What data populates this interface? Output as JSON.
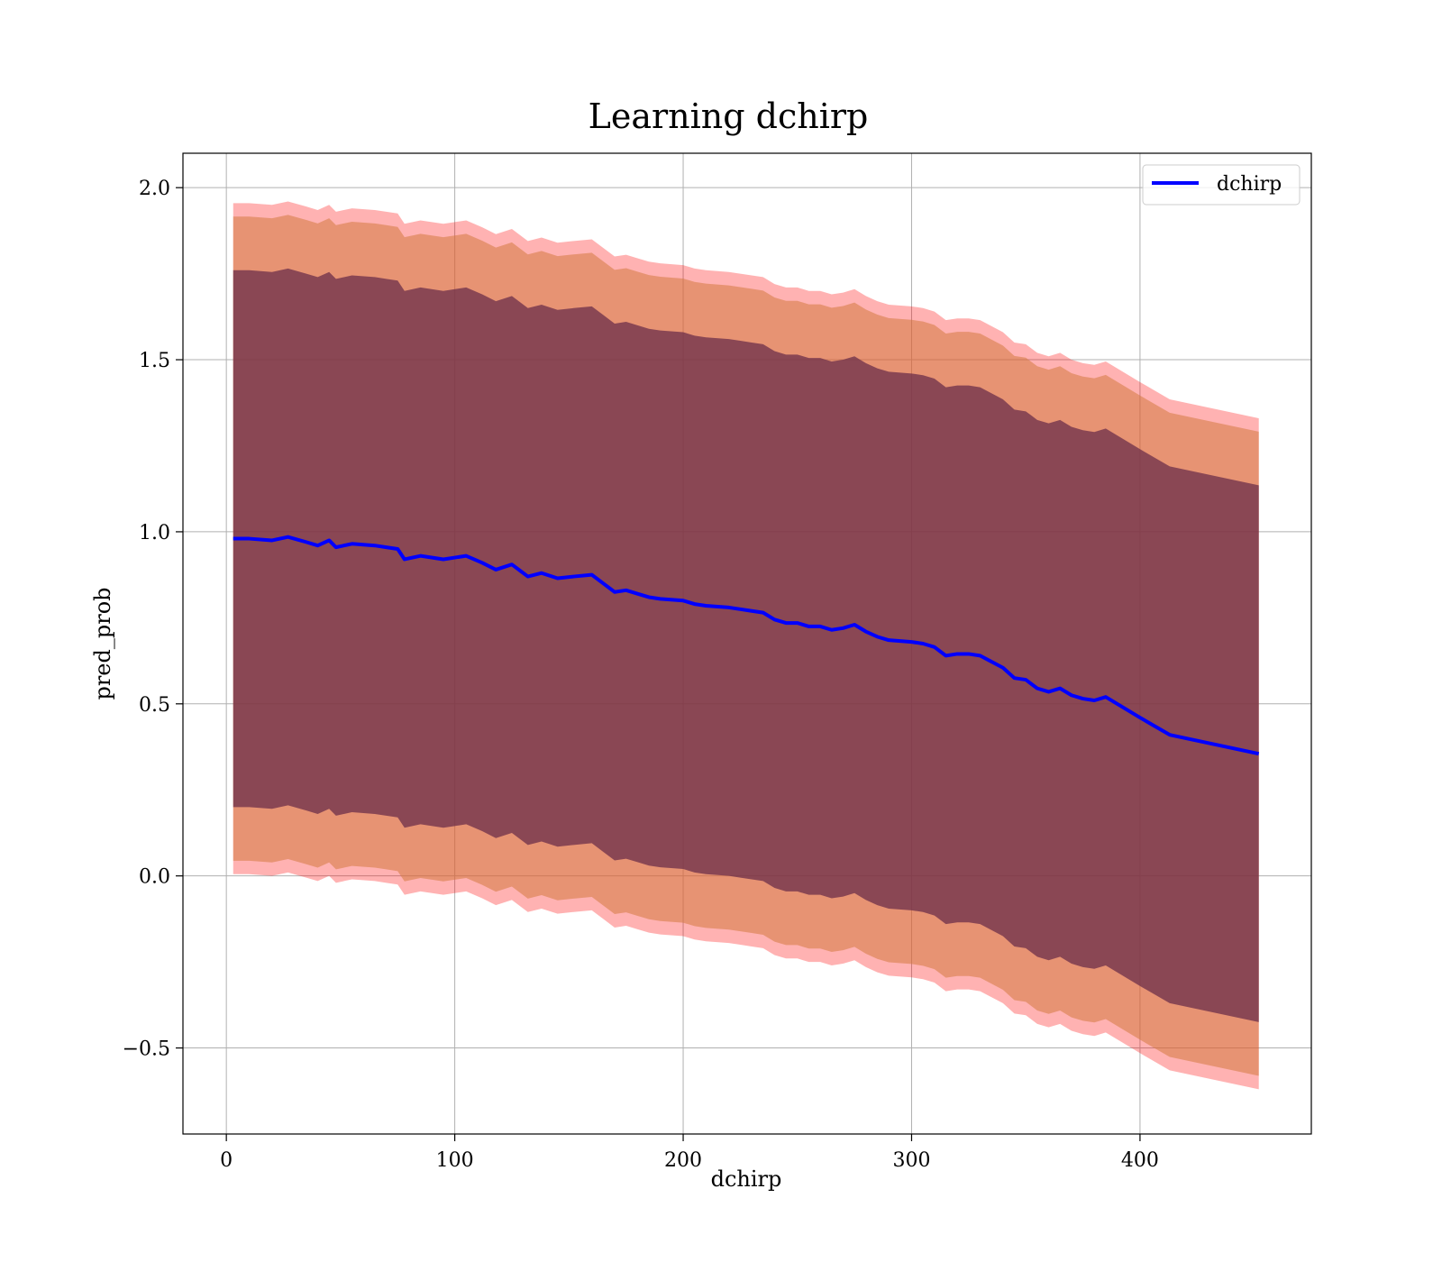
{
  "chart_data": {
    "type": "line",
    "title": "Learning dchirp",
    "xlabel": "dchirp",
    "ylabel": "pred_prob",
    "xlim": [
      -19,
      475
    ],
    "ylim": [
      -0.75,
      2.1
    ],
    "xticks": [
      0,
      100,
      200,
      300,
      400
    ],
    "yticks": [
      -0.5,
      0.0,
      0.5,
      1.0,
      1.5,
      2.0
    ],
    "xtick_labels": [
      "0",
      "100",
      "200",
      "300",
      "400"
    ],
    "ytick_labels": [
      "−0.5",
      "0.0",
      "0.5",
      "1.0",
      "1.5",
      "2.0"
    ],
    "grid": true,
    "legend_position": "top-right",
    "colors": {
      "line": "#0000ff",
      "band_outer": "#ff0000",
      "band_middle": "#d47a3f",
      "band_inner": "#6b2e4a"
    },
    "series": [
      {
        "name": "dchirp",
        "x": [
          3,
          10,
          20,
          27,
          35,
          40,
          45,
          48,
          55,
          65,
          70,
          75,
          78,
          85,
          95,
          100,
          105,
          112,
          118,
          125,
          132,
          138,
          145,
          152,
          160,
          165,
          170,
          175,
          180,
          185,
          190,
          200,
          205,
          210,
          220,
          225,
          230,
          235,
          240,
          245,
          250,
          255,
          260,
          265,
          270,
          275,
          280,
          285,
          290,
          300,
          305,
          310,
          315,
          320,
          325,
          330,
          340,
          345,
          350,
          355,
          360,
          365,
          370,
          375,
          380,
          385,
          390,
          400,
          413,
          452
        ],
        "y": [
          0.98,
          0.98,
          0.975,
          0.985,
          0.97,
          0.96,
          0.975,
          0.955,
          0.965,
          0.96,
          0.955,
          0.95,
          0.92,
          0.93,
          0.92,
          0.925,
          0.93,
          0.91,
          0.89,
          0.905,
          0.87,
          0.88,
          0.865,
          0.87,
          0.875,
          0.85,
          0.825,
          0.83,
          0.82,
          0.81,
          0.805,
          0.8,
          0.79,
          0.785,
          0.78,
          0.775,
          0.77,
          0.765,
          0.745,
          0.735,
          0.735,
          0.725,
          0.725,
          0.715,
          0.72,
          0.73,
          0.71,
          0.695,
          0.685,
          0.68,
          0.675,
          0.665,
          0.64,
          0.645,
          0.645,
          0.64,
          0.605,
          0.575,
          0.57,
          0.545,
          0.535,
          0.545,
          0.525,
          0.515,
          0.51,
          0.52,
          0.5,
          0.46,
          0.41,
          0.355
        ],
        "sigma": [
          0.39,
          0.39,
          0.39,
          0.39,
          0.39,
          0.39,
          0.39,
          0.39,
          0.39,
          0.39,
          0.39,
          0.39,
          0.39,
          0.39,
          0.39,
          0.39,
          0.39,
          0.39,
          0.39,
          0.39,
          0.39,
          0.39,
          0.39,
          0.39,
          0.39,
          0.39,
          0.39,
          0.39,
          0.39,
          0.39,
          0.39,
          0.39,
          0.39,
          0.39,
          0.39,
          0.39,
          0.39,
          0.39,
          0.39,
          0.39,
          0.39,
          0.39,
          0.39,
          0.39,
          0.39,
          0.39,
          0.39,
          0.39,
          0.39,
          0.39,
          0.39,
          0.39,
          0.39,
          0.39,
          0.39,
          0.39,
          0.39,
          0.39,
          0.39,
          0.39,
          0.39,
          0.39,
          0.39,
          0.39,
          0.39,
          0.39,
          0.39,
          0.39,
          0.39,
          0.39
        ]
      }
    ],
    "bands_sigma_multiples": [
      2.5,
      2.4,
      2.0
    ]
  }
}
